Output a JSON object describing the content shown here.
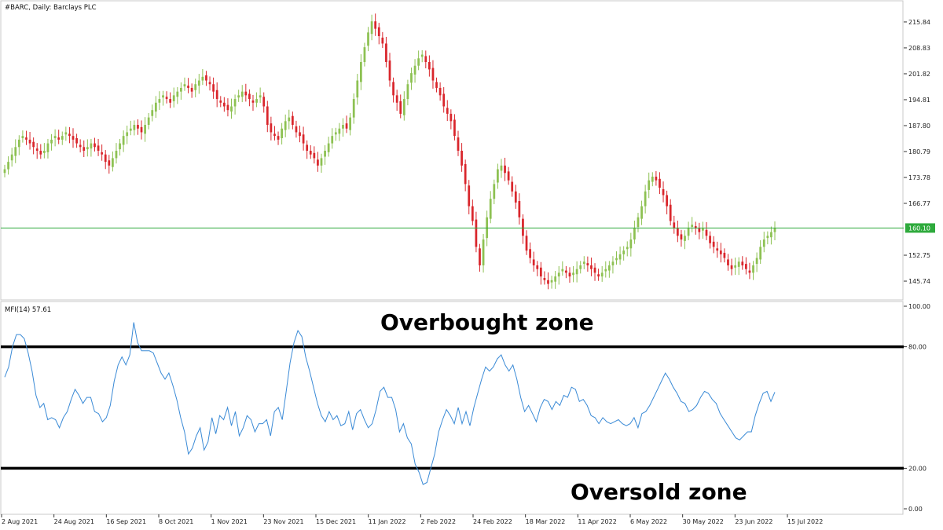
{
  "header": {
    "title": "#BARC, Daily:  Barclays PLC",
    "indicator": "MFI(14) 57.61"
  },
  "annotations": {
    "overbought": "Overbought zone",
    "oversold": "Oversold zone"
  },
  "colors": {
    "bull": "#8dc152",
    "bear": "#d9262c",
    "price_line": "#2eaa3c",
    "mfi_line": "#3a8ad6",
    "levels": "#000000"
  },
  "chart_data": [
    {
      "type": "candlestick",
      "title": "#BARC, Daily:  Barclays PLC",
      "xlabel": "",
      "ylabel": "",
      "ylim": [
        141.5,
        220.5
      ],
      "yticks": [
        "215.84",
        "208.83",
        "201.82",
        "194.81",
        "187.80",
        "180.79",
        "173.78",
        "166.77",
        "160.10",
        "152.75",
        "145.74"
      ],
      "current_price": "160.10",
      "x_ticks": [
        "2 Aug 2021",
        "24 Aug 2021",
        "16 Sep 2021",
        "8 Oct 2021",
        "1 Nov 2021",
        "23 Nov 2021",
        "15 Dec 2021",
        "11 Jan 2022",
        "2 Feb 2022",
        "24 Feb 2022",
        "18 Mar 2022",
        "11 Apr 2022",
        "6 May 2022",
        "30 May 2022",
        "23 Jun 2022",
        "15 Jul 2022"
      ],
      "closes": [
        176,
        178,
        180,
        182,
        184,
        185,
        184,
        183,
        182,
        181,
        180,
        181,
        183,
        184,
        185,
        184,
        185,
        186,
        185,
        184,
        183,
        182,
        181,
        182,
        183,
        182,
        181,
        180,
        178,
        177,
        179,
        181,
        183,
        185,
        186,
        187,
        188,
        187,
        186,
        188,
        190,
        192,
        194,
        195,
        196,
        195,
        194,
        196,
        197,
        198,
        199,
        198,
        197,
        199,
        200,
        201,
        200,
        199,
        197,
        195,
        194,
        193,
        192,
        193,
        195,
        196,
        197,
        196,
        195,
        194,
        195,
        196,
        193,
        188,
        186,
        185,
        184,
        187,
        189,
        190,
        188,
        186,
        185,
        183,
        181,
        180,
        179,
        177,
        179,
        181,
        183,
        185,
        186,
        187,
        188,
        187,
        190,
        195,
        200,
        205,
        209,
        213,
        216,
        214,
        212,
        210,
        205,
        200,
        196,
        194,
        191,
        195,
        199,
        202,
        204,
        206,
        207,
        205,
        203,
        200,
        198,
        196,
        193,
        191,
        189,
        185,
        181,
        177,
        172,
        166,
        162,
        155,
        150,
        157,
        163,
        168,
        172,
        176,
        177,
        175,
        173,
        170,
        167,
        163,
        158,
        154,
        152,
        150,
        149,
        147,
        146,
        145,
        146,
        147,
        148,
        149,
        148,
        147,
        148,
        149,
        150,
        151,
        150,
        149,
        148,
        147,
        148,
        149,
        150,
        151,
        152,
        153,
        154,
        155,
        157,
        160,
        163,
        166,
        170,
        173,
        174,
        173,
        171,
        169,
        166,
        162,
        160,
        158,
        157,
        158,
        160,
        161,
        160,
        159,
        160,
        158,
        156,
        155,
        154,
        153,
        152,
        150,
        149,
        150,
        151,
        150,
        149,
        148,
        150,
        152,
        155,
        157,
        158,
        159,
        160.1
      ],
      "mfi": {
        "name": "MFI(14)",
        "value": "57.61",
        "ylim": [
          0,
          100
        ],
        "levels": [
          80,
          20
        ],
        "yticks": [
          "100.00",
          "80.00",
          "20.00",
          "0.00"
        ],
        "values": [
          65,
          70,
          80,
          86,
          86,
          84,
          77,
          68,
          56,
          50,
          52,
          44,
          45,
          44,
          40,
          45,
          48,
          54,
          59,
          56,
          52,
          55,
          55,
          48,
          47,
          43,
          45,
          51,
          63,
          71,
          75,
          71,
          76,
          92,
          82,
          78,
          78,
          78,
          77,
          72,
          67,
          64,
          67,
          61,
          54,
          45,
          38,
          27,
          30,
          36,
          40,
          29,
          33,
          45,
          37,
          46,
          44,
          50,
          41,
          48,
          36,
          40,
          46,
          44,
          38,
          42,
          42,
          44,
          36,
          48,
          50,
          44,
          58,
          72,
          82,
          88,
          85,
          75,
          68,
          60,
          52,
          46,
          43,
          48,
          44,
          46,
          41,
          42,
          48,
          39,
          47,
          49,
          44,
          40,
          42,
          49,
          58,
          60,
          55,
          55,
          49,
          38,
          42,
          35,
          32,
          22,
          18,
          12,
          13,
          20,
          27,
          38,
          44,
          49,
          46,
          42,
          50,
          42,
          48,
          41,
          50,
          57,
          64,
          70,
          68,
          70,
          74,
          76,
          71,
          68,
          71,
          64,
          55,
          48,
          51,
          47,
          43,
          50,
          54,
          53,
          49,
          53,
          51,
          56,
          55,
          60,
          59,
          53,
          54,
          51,
          46,
          45,
          42,
          45,
          43,
          42,
          43,
          44,
          42,
          41,
          42,
          45,
          40,
          47,
          48,
          51,
          55,
          59,
          63,
          67,
          64,
          60,
          57,
          53,
          52,
          48,
          49,
          51,
          55,
          58,
          57,
          54,
          52,
          47,
          44,
          41,
          38,
          35,
          34,
          36,
          38,
          38,
          46,
          52,
          57,
          58,
          53,
          57.61
        ]
      }
    }
  ]
}
